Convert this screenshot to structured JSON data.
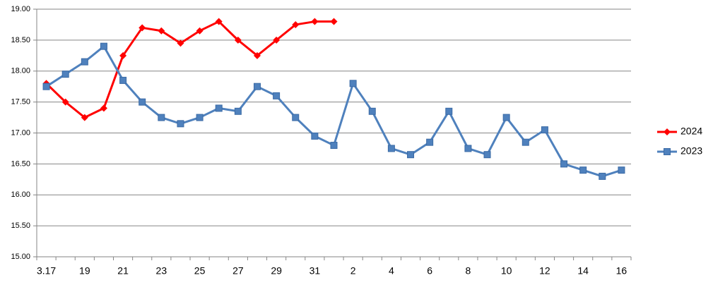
{
  "chart_data": {
    "type": "line",
    "categories": [
      "3.17",
      null,
      "19",
      null,
      "21",
      null,
      "23",
      null,
      "25",
      null,
      "27",
      null,
      "29",
      null,
      "31",
      null,
      "2",
      null,
      "4",
      null,
      "6",
      null,
      "8",
      null,
      "10",
      null,
      "12",
      null,
      "14",
      null,
      "16"
    ],
    "series": [
      {
        "name": "2024",
        "color": "#ff0000",
        "marker": "diamond",
        "values": [
          17.8,
          17.5,
          17.25,
          17.4,
          18.25,
          18.7,
          18.65,
          18.45,
          18.65,
          18.8,
          18.5,
          18.25,
          18.5,
          18.75,
          18.8,
          18.8,
          null,
          null,
          null,
          null,
          null,
          null,
          null,
          null,
          null,
          null,
          null,
          null,
          null,
          null,
          null
        ]
      },
      {
        "name": "2023",
        "color": "#4f81bd",
        "marker": "square",
        "values": [
          17.75,
          17.95,
          18.15,
          18.4,
          17.85,
          17.5,
          17.25,
          17.15,
          17.25,
          17.4,
          17.35,
          17.75,
          17.6,
          17.25,
          16.95,
          16.8,
          17.8,
          17.35,
          16.75,
          16.65,
          16.85,
          17.35,
          16.75,
          16.65,
          17.25,
          16.85,
          17.05,
          16.5,
          16.4,
          16.3,
          16.4
        ]
      }
    ],
    "ylim": [
      15,
      19
    ],
    "yticks": [
      {
        "value": 15,
        "label": "15.00"
      },
      {
        "value": 15.5,
        "label": "15.50"
      },
      {
        "value": 16,
        "label": "16.00"
      },
      {
        "value": 16.5,
        "label": "16.50"
      },
      {
        "value": 17,
        "label": "17.00"
      },
      {
        "value": 17.5,
        "label": "17.50"
      },
      {
        "value": 18,
        "label": "18.00"
      },
      {
        "value": 18.5,
        "label": "18.50"
      },
      {
        "value": 19,
        "label": "19.00"
      }
    ],
    "grid": true,
    "legend": "right"
  }
}
